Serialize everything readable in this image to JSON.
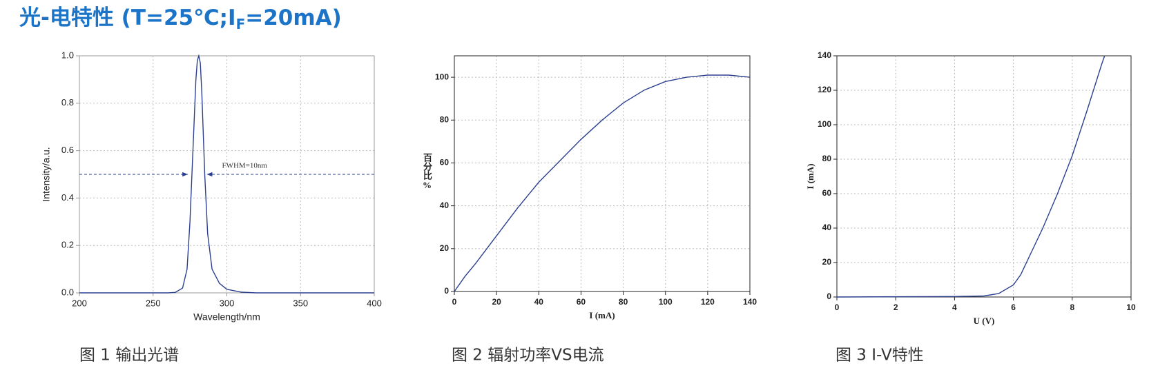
{
  "header": {
    "title": "光-电特性 (T=25℃;I",
    "title_subscript": "F",
    "title_end": "=20mA)"
  },
  "chart_data": [
    {
      "type": "line",
      "caption": "图 1 输出光谱",
      "xlabel": "Wavelength/nm",
      "ylabel": "Intensity/a.u.",
      "x": [
        200,
        260,
        265,
        270,
        273,
        275,
        277,
        279,
        280,
        281,
        282,
        283,
        285,
        287,
        290,
        295,
        300,
        310,
        320,
        400
      ],
      "values": [
        0,
        0,
        0.002,
        0.02,
        0.1,
        0.3,
        0.6,
        0.9,
        0.98,
        1.0,
        0.97,
        0.85,
        0.5,
        0.25,
        0.1,
        0.04,
        0.015,
        0.003,
        0,
        0
      ],
      "color": "#2b3f8f",
      "xlim": [
        200,
        400
      ],
      "xticks": [
        200,
        250,
        300,
        350,
        400
      ],
      "ylim": [
        0,
        1
      ],
      "yticks": [
        {
          "value": 0,
          "label": "0.0"
        },
        0.2,
        0.4,
        0.6,
        0.8,
        {
          "value": 1,
          "label": "1.0"
        }
      ],
      "grid": true,
      "annotation": {
        "text": "FWHM=10nm",
        "level": 0.5,
        "from": 275,
        "to": 285
      }
    },
    {
      "type": "line",
      "caption": "图 2 辐射功率VS电流",
      "xlabel": "I (mA)",
      "ylabel": "百分比%",
      "x": [
        0,
        5,
        10,
        20,
        30,
        40,
        50,
        60,
        70,
        80,
        90,
        100,
        110,
        120,
        130,
        140
      ],
      "values": [
        0,
        7,
        13,
        26,
        39,
        51,
        61,
        71,
        80,
        88,
        94,
        98,
        100,
        101,
        101,
        100
      ],
      "color": "#2b3f8f",
      "xlim": [
        0,
        140
      ],
      "xticks": [
        0,
        20,
        40,
        60,
        80,
        100,
        120,
        140
      ],
      "ylim": [
        0,
        110
      ],
      "yticks": [
        0,
        20,
        40,
        60,
        80,
        100
      ],
      "grid": true
    },
    {
      "type": "line",
      "caption": "图 3 I-V特性",
      "xlabel": "U (V)",
      "ylabel": "I (mA)",
      "x": [
        0,
        4,
        5,
        5.5,
        6,
        6.25,
        6.5,
        7,
        7.5,
        8,
        8.5,
        9,
        9.1
      ],
      "values": [
        0,
        0.3,
        0.6,
        2,
        7,
        13,
        22,
        40,
        60,
        82,
        108,
        135,
        140
      ],
      "color": "#2b3f8f",
      "xlim": [
        0,
        10
      ],
      "xticks": [
        0,
        2,
        4,
        6,
        8,
        10
      ],
      "ylim": [
        0,
        140
      ],
      "yticks": [
        0,
        20,
        40,
        60,
        80,
        100,
        120,
        140
      ],
      "grid": true
    }
  ]
}
